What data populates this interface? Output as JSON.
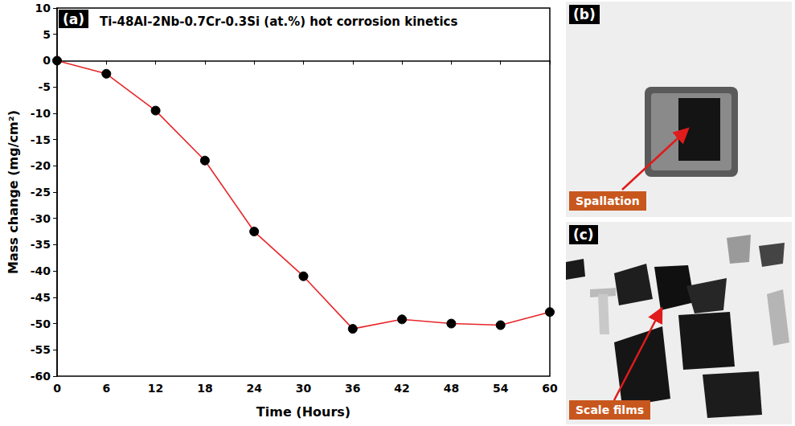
{
  "chart_data": {
    "type": "line",
    "title": "Ti-48Al-2Nb-0.7Cr-0.3Si (at.%) hot corrosion kinetics",
    "panel_label": "(a)",
    "x_label": "Time (Hours)",
    "y_label": "Mass change (mg/cm²)",
    "x": [
      0,
      6,
      12,
      18,
      24,
      30,
      36,
      42,
      48,
      54,
      60
    ],
    "values": [
      0,
      -2.5,
      -9.5,
      -19,
      -32.5,
      -41,
      -51,
      -49.2,
      -50,
      -50.3,
      -47.8
    ],
    "color": "#e8262a",
    "marker": "circle",
    "xlim": [
      0,
      60
    ],
    "xticks": [
      0,
      6,
      12,
      18,
      24,
      30,
      36,
      42,
      48,
      54,
      60
    ],
    "ylim": [
      -60,
      10
    ],
    "yticks": [
      -60,
      -55,
      -50,
      -45,
      -40,
      -35,
      -30,
      -25,
      -20,
      -15,
      -10,
      -5,
      0,
      5,
      10
    ],
    "grid": false
  },
  "photo_panels": [
    {
      "panel_label": "(b)",
      "annotation": "Spallation"
    },
    {
      "panel_label": "(c)",
      "annotation": "Scale films"
    }
  ]
}
